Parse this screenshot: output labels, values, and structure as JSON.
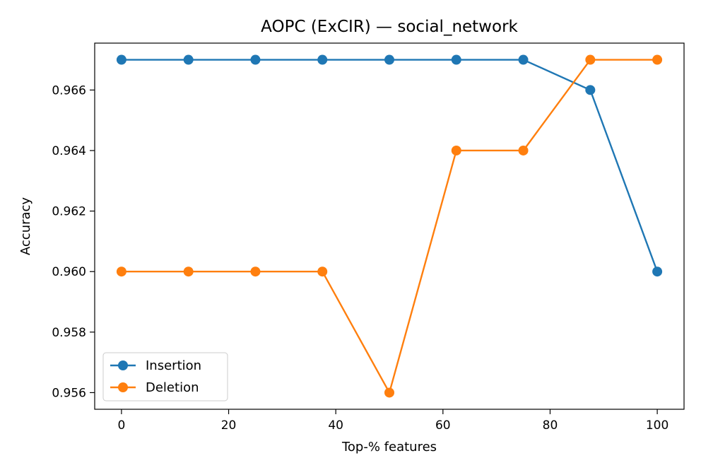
{
  "chart_data": {
    "type": "line",
    "title": "AOPC (ExCIR) — social_network",
    "xlabel": "Top-% features",
    "ylabel": "Accuracy",
    "x": [
      0,
      12.5,
      25,
      37.5,
      50,
      62.5,
      75,
      87.5,
      100
    ],
    "xlim": [
      -5,
      105
    ],
    "ylim": [
      0.95545,
      0.96755
    ],
    "xticks": [
      0,
      20,
      40,
      60,
      80,
      100
    ],
    "xtick_labels": [
      "0",
      "20",
      "40",
      "60",
      "80",
      "100"
    ],
    "yticks": [
      0.956,
      0.958,
      0.96,
      0.962,
      0.964,
      0.966
    ],
    "ytick_labels": [
      "0.956",
      "0.958",
      "0.960",
      "0.962",
      "0.964",
      "0.966"
    ],
    "grid": false,
    "legend": "lower-left",
    "series": [
      {
        "name": "Insertion",
        "color": "#1f77b4",
        "marker": "circle",
        "values": [
          0.967,
          0.967,
          0.967,
          0.967,
          0.967,
          0.967,
          0.967,
          0.966,
          0.96
        ]
      },
      {
        "name": "Deletion",
        "color": "#ff7f0e",
        "marker": "circle",
        "values": [
          0.96,
          0.96,
          0.96,
          0.96,
          0.956,
          0.964,
          0.964,
          0.967,
          0.967
        ]
      }
    ]
  }
}
